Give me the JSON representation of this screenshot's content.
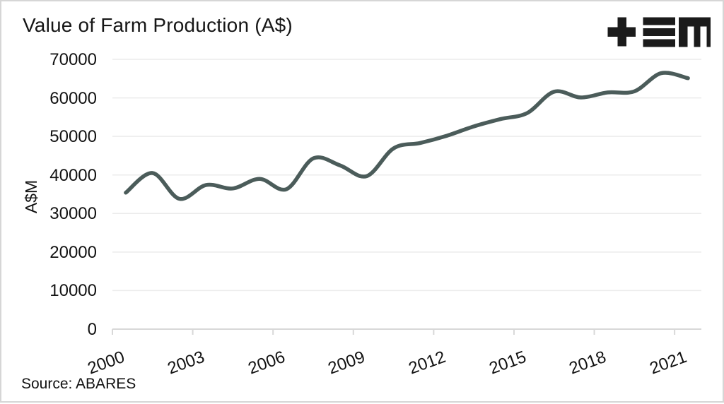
{
  "chart_data": {
    "type": "line",
    "title": "Value of Farm Production (A$)",
    "xlabel": "",
    "ylabel": "A$M",
    "source": "Source: ABARES",
    "grid": "horizontal",
    "legend": "none",
    "xlim": [
      2000,
      2022
    ],
    "ylim": [
      0,
      70000
    ],
    "x_ticks": [
      2000,
      2003,
      2006,
      2009,
      2012,
      2015,
      2018,
      2021
    ],
    "x_tick_labels": [
      "2000",
      "2003",
      "2006",
      "2009",
      "2012",
      "2015",
      "2018",
      "2021"
    ],
    "y_ticks": [
      0,
      10000,
      20000,
      30000,
      40000,
      50000,
      60000,
      70000
    ],
    "y_tick_labels": [
      "0",
      "10000",
      "20000",
      "30000",
      "40000",
      "50000",
      "60000",
      "70000"
    ],
    "series": [
      {
        "name": "Value of Farm Production",
        "x": [
          2000.5,
          2001.5,
          2002.5,
          2003.5,
          2004.5,
          2005.5,
          2006.5,
          2007.5,
          2008.5,
          2009.5,
          2010.5,
          2011.5,
          2012.5,
          2013.5,
          2014.5,
          2015.5,
          2016.5,
          2017.5,
          2018.5,
          2019.5,
          2020.5,
          2021.5
        ],
        "values": [
          35400,
          40500,
          33800,
          37400,
          36500,
          39000,
          36300,
          44300,
          42500,
          39700,
          46900,
          48300,
          50200,
          52600,
          54500,
          56100,
          61600,
          60100,
          61400,
          61700,
          66400,
          65100
        ]
      }
    ],
    "smoothing": "spline"
  },
  "logo": {
    "name": "tem logo",
    "glyphs": [
      "plus",
      "triple-bar",
      "m"
    ]
  },
  "colors": {
    "background": "#ffffff",
    "line": "#4b5c5a",
    "title_text": "#161616",
    "axis_text": "#121212",
    "gridline": "#ebebeb",
    "axis_line": "#d8d8d8",
    "logo": "#1b1b1b",
    "page_border": "#d6d6d6"
  }
}
